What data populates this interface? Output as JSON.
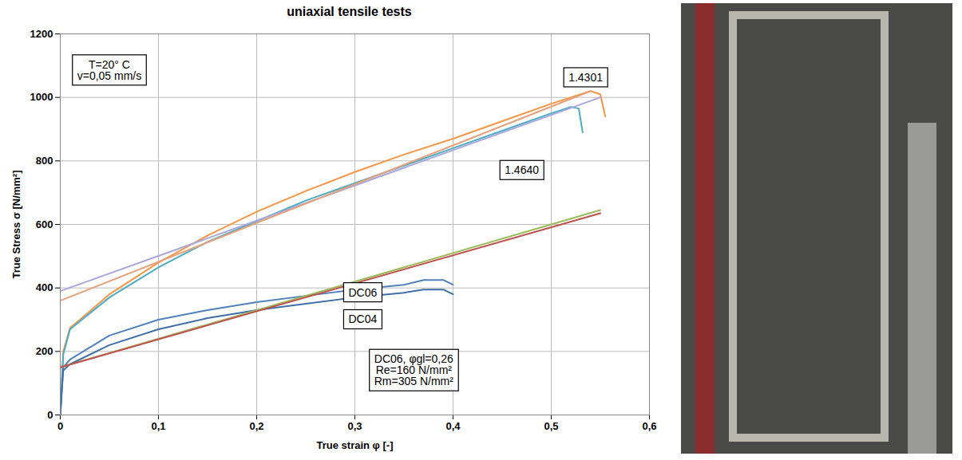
{
  "chart_data": {
    "type": "line",
    "title": "uniaxial tensile tests",
    "x_label": "True strain φ [-]",
    "y_label": "True Stress σ [N/mm²]",
    "xlim": [
      0,
      0.6
    ],
    "xticks": [
      0,
      {
        "value": 0.1,
        "label": "0,1"
      },
      {
        "value": 0.2,
        "label": "0,2"
      },
      {
        "value": 0.3,
        "label": "0,3"
      },
      {
        "value": 0.4,
        "label": "0,4"
      },
      {
        "value": 0.5,
        "label": "0,5"
      },
      {
        "value": 0.6,
        "label": "0,6"
      }
    ],
    "ylim": [
      0,
      1200
    ],
    "yticks": [
      0,
      200,
      400,
      600,
      800,
      1000,
      1200
    ],
    "grid": true,
    "series": [
      {
        "name": "1.4301",
        "color": "#f79646",
        "x": [
          0,
          0.003,
          0.01,
          0.02,
          0.05,
          0.1,
          0.15,
          0.2,
          0.25,
          0.3,
          0.35,
          0.4,
          0.45,
          0.5,
          0.53,
          0.54,
          0.55,
          0.555
        ],
        "values": [
          0,
          200,
          275,
          300,
          380,
          480,
          565,
          640,
          705,
          765,
          820,
          870,
          925,
          980,
          1010,
          1020,
          1010,
          940
        ]
      },
      {
        "name": "1.4640",
        "color": "#4bacc6",
        "x": [
          0,
          0.003,
          0.01,
          0.02,
          0.05,
          0.1,
          0.15,
          0.2,
          0.25,
          0.3,
          0.35,
          0.4,
          0.45,
          0.5,
          0.52,
          0.528,
          0.532
        ],
        "values": [
          0,
          190,
          270,
          295,
          370,
          465,
          545,
          610,
          675,
          730,
          785,
          840,
          895,
          950,
          970,
          965,
          890
        ]
      },
      {
        "color": "#a9a6dc",
        "x": [
          0,
          0.55
        ],
        "values": [
          390,
          1000
        ]
      },
      {
        "color": "#e6a07a",
        "x": [
          0,
          0.54
        ],
        "values": [
          360,
          1020
        ]
      },
      {
        "name": "DC04",
        "color": "#4f81bd",
        "x": [
          0,
          0.003,
          0.01,
          0.05,
          0.1,
          0.15,
          0.2,
          0.25,
          0.3,
          0.35,
          0.37,
          0.39,
          0.4
        ],
        "values": [
          0,
          150,
          175,
          250,
          300,
          330,
          355,
          375,
          395,
          410,
          425,
          425,
          410
        ]
      },
      {
        "name": "DC06",
        "color": "#3f6fa8",
        "x": [
          0,
          0.003,
          0.01,
          0.05,
          0.1,
          0.15,
          0.2,
          0.25,
          0.3,
          0.35,
          0.37,
          0.39,
          0.4
        ],
        "values": [
          0,
          140,
          160,
          220,
          270,
          305,
          330,
          350,
          370,
          385,
          395,
          395,
          380
        ]
      },
      {
        "color": "#9bbb59",
        "x": [
          0,
          0.55
        ],
        "values": [
          150,
          645
        ]
      },
      {
        "color": "#c0504d",
        "x": [
          0,
          0.55
        ],
        "values": [
          150,
          635
        ]
      }
    ],
    "annotations": [
      {
        "text": "T=20° C\nv=0,05 mm/s",
        "x": 0.05,
        "y": 1085
      },
      {
        "text": "1.4301",
        "x": 0.535,
        "y": 1062
      },
      {
        "text": "1.4640",
        "x": 0.47,
        "y": 770
      },
      {
        "text": "DC06",
        "x": 0.308,
        "y": 385
      },
      {
        "text": "DC04",
        "x": 0.308,
        "y": 300
      },
      {
        "text": "DC06, φgl=0,26\nRe=160 N/mm²\nRm=305 N/mm²",
        "x": 0.36,
        "y": 140
      }
    ]
  }
}
